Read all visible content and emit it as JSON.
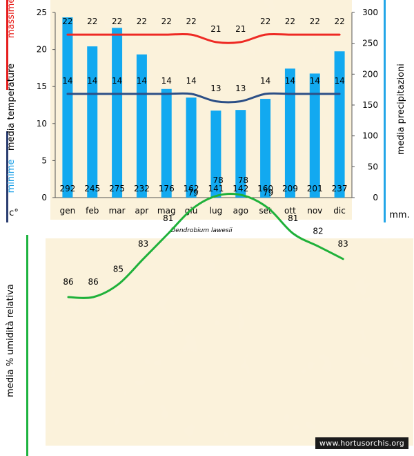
{
  "chart_data": [
    {
      "type": "bar",
      "title": "Dendrobium lawesii",
      "categories": [
        "gen",
        "feb",
        "mar",
        "apr",
        "mag",
        "giu",
        "lug",
        "ago",
        "set",
        "ott",
        "nov",
        "dic"
      ],
      "left_axis": {
        "labels": [
          "massime",
          "media temperature",
          "minime"
        ],
        "unit": "c°",
        "range": [
          0,
          25
        ],
        "ticks": [
          0,
          5,
          10,
          15,
          20,
          25
        ]
      },
      "right_axis": {
        "label": "media precipitazioni",
        "unit": "mm.",
        "range": [
          0,
          300
        ],
        "ticks": [
          0,
          50,
          100,
          150,
          200,
          250,
          300
        ]
      },
      "series": [
        {
          "name": "precipitazioni",
          "type": "bar",
          "axis": "right",
          "color": "#12a9f0",
          "values": [
            292,
            245,
            275,
            232,
            176,
            162,
            141,
            142,
            160,
            209,
            201,
            237
          ]
        },
        {
          "name": "massime",
          "type": "line",
          "axis": "left",
          "color": "#ee2a24",
          "values": [
            22,
            22,
            22,
            22,
            22,
            22,
            21,
            21,
            22,
            22,
            22,
            22
          ]
        },
        {
          "name": "minime",
          "type": "line",
          "axis": "left",
          "color": "#2c4f86",
          "values": [
            14,
            14,
            14,
            14,
            14,
            14,
            13,
            13,
            14,
            14,
            14,
            14
          ]
        }
      ],
      "grid": false
    },
    {
      "type": "line",
      "ylabel": "media % umidità relativa",
      "series": [
        {
          "name": "umidità relativa",
          "color": "#1fb13a",
          "values": [
            86,
            86,
            85,
            83,
            81,
            79,
            78,
            78,
            79,
            81,
            82,
            83
          ]
        }
      ]
    }
  ],
  "colors": {
    "panel_bg": "#fbf2db",
    "left_accent_red": "#e61e1e",
    "left_accent_navy": "#2a3d70",
    "right_accent": "#23a6e8",
    "humidity_accent": "#1db33f"
  },
  "watermark": "www.hortusorchis.org"
}
